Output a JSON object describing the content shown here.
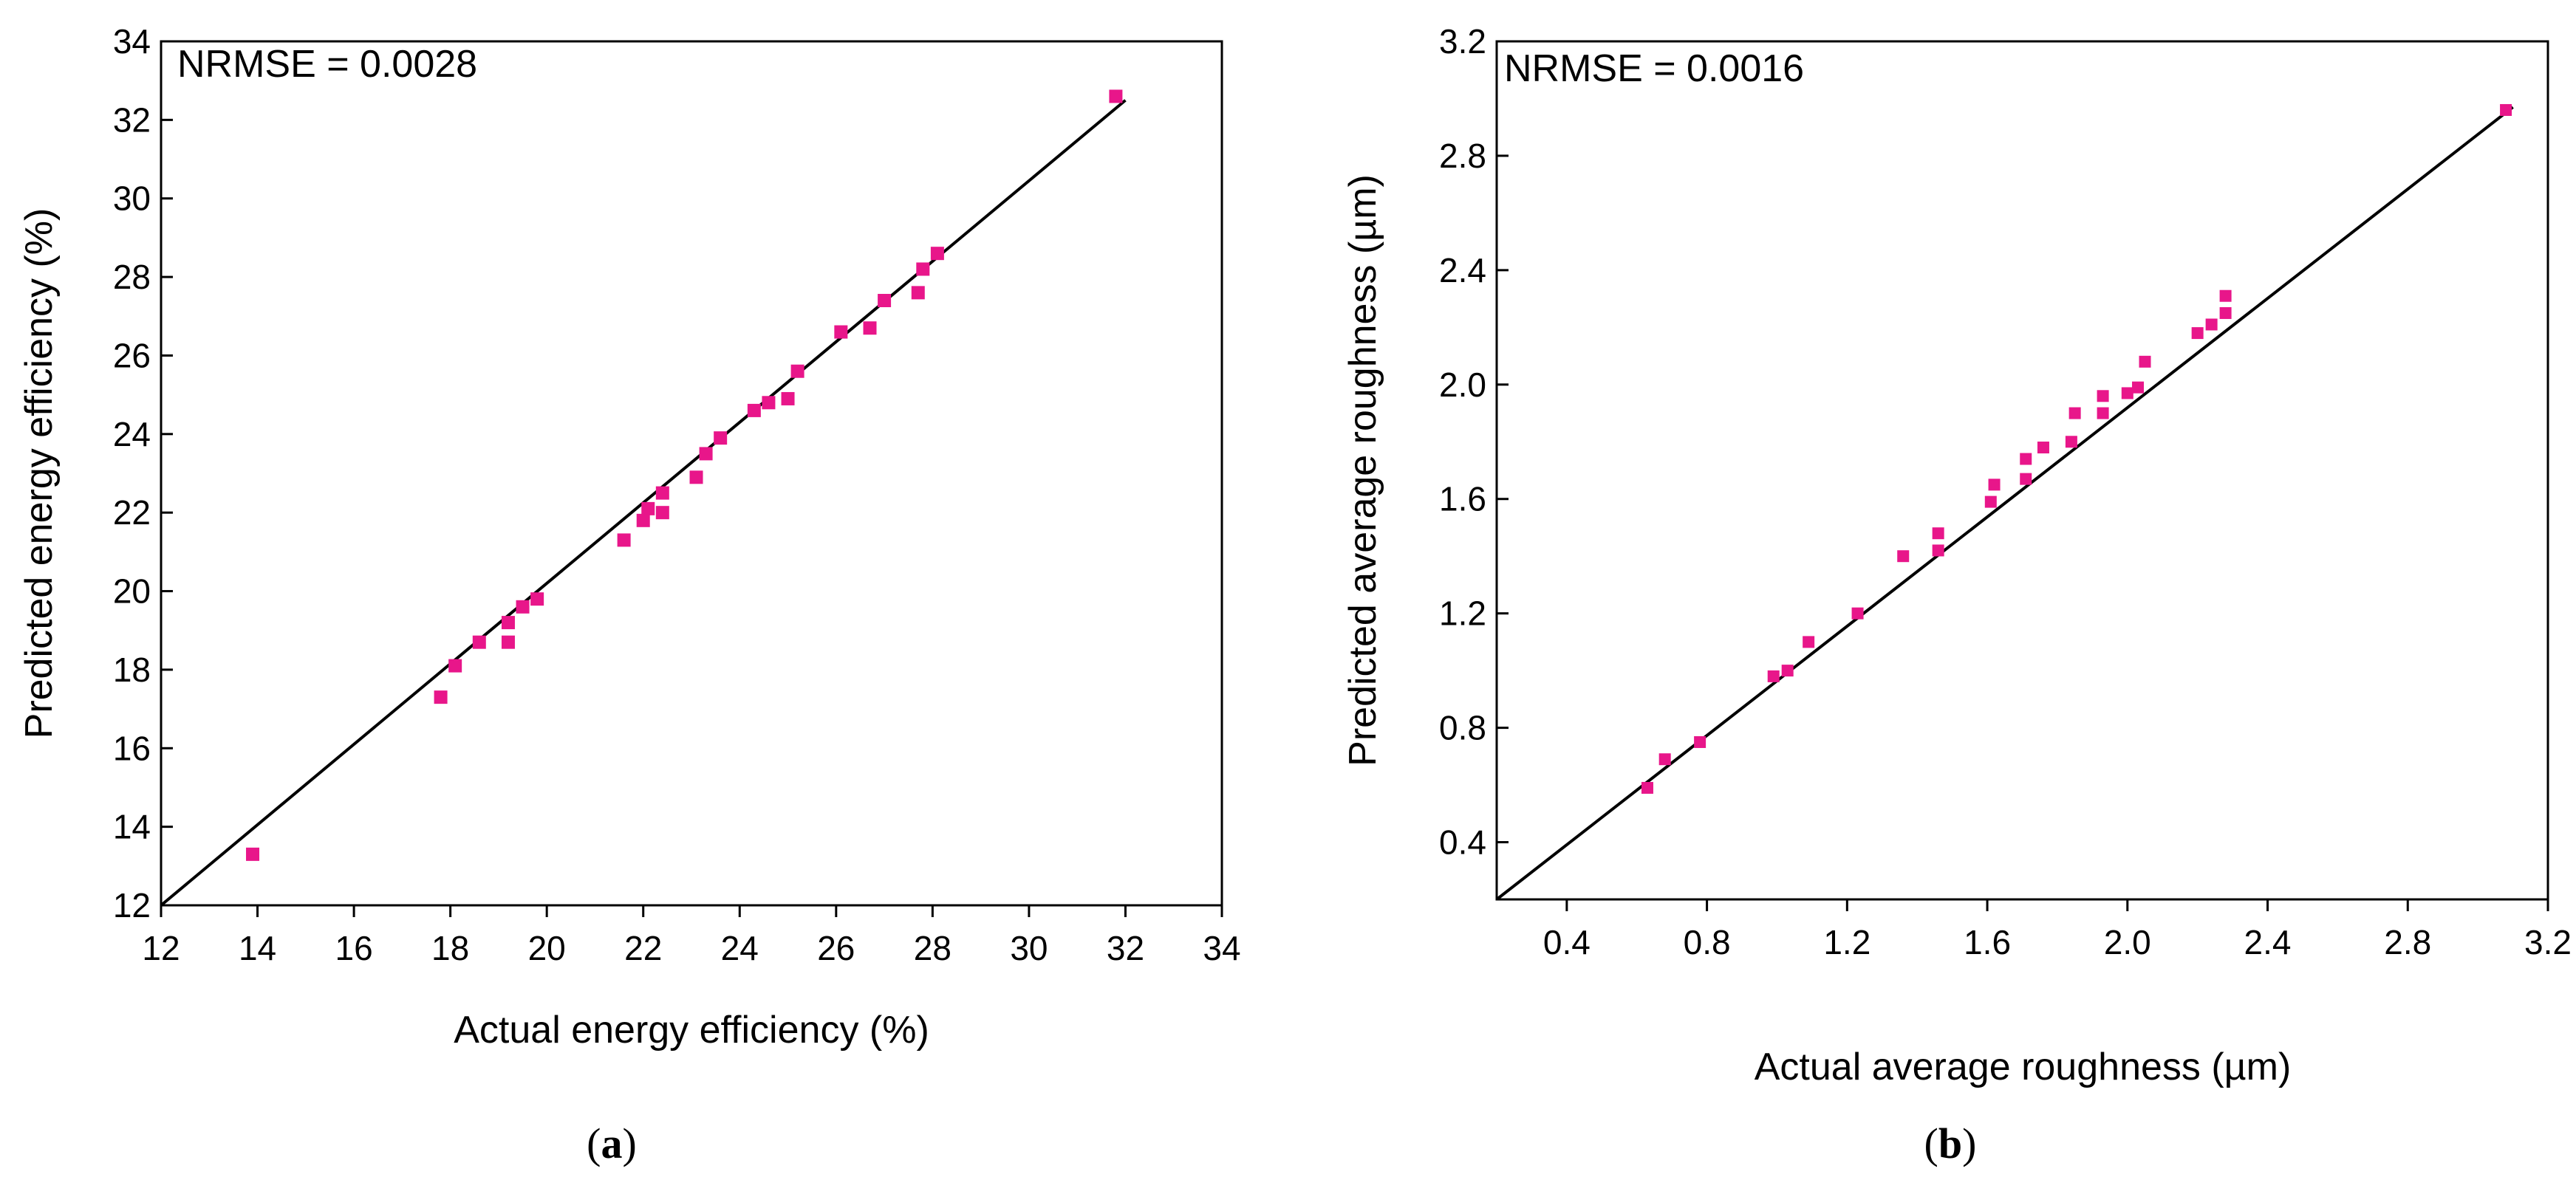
{
  "chart_data": [
    {
      "type": "scatter",
      "panel_label": "a",
      "annotation": "NRMSE = 0.0028",
      "xlabel": "Actual energy efficiency (%)",
      "ylabel": "Predicted energy efficiency (%)",
      "xlim": [
        12,
        34
      ],
      "ylim": [
        12,
        34
      ],
      "xticks": [
        "12",
        "14",
        "16",
        "18",
        "20",
        "22",
        "24",
        "26",
        "28",
        "30",
        "32",
        "34"
      ],
      "yticks": [
        "12",
        "14",
        "16",
        "18",
        "20",
        "22",
        "24",
        "26",
        "28",
        "30",
        "32",
        "34"
      ],
      "reference_line": {
        "x": [
          12,
          32
        ],
        "y": [
          12,
          32.5
        ]
      },
      "marker_color": "#e8168a",
      "line_color": "#000000",
      "points": [
        {
          "x": 13.9,
          "y": 13.3
        },
        {
          "x": 17.8,
          "y": 17.3
        },
        {
          "x": 18.1,
          "y": 18.1
        },
        {
          "x": 18.6,
          "y": 18.7
        },
        {
          "x": 19.2,
          "y": 19.2
        },
        {
          "x": 19.2,
          "y": 18.7
        },
        {
          "x": 19.5,
          "y": 19.6
        },
        {
          "x": 19.8,
          "y": 19.8
        },
        {
          "x": 21.6,
          "y": 21.3
        },
        {
          "x": 22.0,
          "y": 21.8
        },
        {
          "x": 22.1,
          "y": 22.1
        },
        {
          "x": 22.4,
          "y": 22.5
        },
        {
          "x": 22.4,
          "y": 22.0
        },
        {
          "x": 23.1,
          "y": 22.9
        },
        {
          "x": 23.3,
          "y": 23.5
        },
        {
          "x": 23.6,
          "y": 23.9
        },
        {
          "x": 24.3,
          "y": 24.6
        },
        {
          "x": 24.6,
          "y": 24.8
        },
        {
          "x": 25.0,
          "y": 24.9
        },
        {
          "x": 25.2,
          "y": 25.6
        },
        {
          "x": 26.1,
          "y": 26.6
        },
        {
          "x": 26.7,
          "y": 26.7
        },
        {
          "x": 27.0,
          "y": 27.4
        },
        {
          "x": 27.7,
          "y": 27.6
        },
        {
          "x": 27.8,
          "y": 28.2
        },
        {
          "x": 28.1,
          "y": 28.6
        },
        {
          "x": 31.8,
          "y": 32.6
        }
      ]
    },
    {
      "type": "scatter",
      "panel_label": "b",
      "annotation": "NRMSE = 0.0016",
      "xlabel": "Actual average roughness (µm)",
      "ylabel": "Predicted average roughness (µm)",
      "xlim": [
        0.2,
        3.2
      ],
      "ylim": [
        0.2,
        3.2
      ],
      "xticks": [
        "0.4",
        "0.8",
        "1.2",
        "1.6",
        "2.0",
        "2.4",
        "2.8",
        "3.2"
      ],
      "yticks": [
        "0.4",
        "0.8",
        "1.2",
        "1.6",
        "2.0",
        "2.4",
        "2.8",
        "3.2"
      ],
      "reference_line": {
        "x": [
          0.2,
          3.1
        ],
        "y": [
          0.2,
          2.97
        ]
      },
      "marker_color": "#e8168a",
      "line_color": "#000000",
      "points": [
        {
          "x": 0.63,
          "y": 0.59
        },
        {
          "x": 0.68,
          "y": 0.69
        },
        {
          "x": 0.78,
          "y": 0.75
        },
        {
          "x": 0.99,
          "y": 0.98
        },
        {
          "x": 1.03,
          "y": 1.0
        },
        {
          "x": 1.09,
          "y": 1.1
        },
        {
          "x": 1.23,
          "y": 1.2
        },
        {
          "x": 1.36,
          "y": 1.4
        },
        {
          "x": 1.46,
          "y": 1.42
        },
        {
          "x": 1.46,
          "y": 1.48
        },
        {
          "x": 1.61,
          "y": 1.59
        },
        {
          "x": 1.62,
          "y": 1.65
        },
        {
          "x": 1.71,
          "y": 1.67
        },
        {
          "x": 1.71,
          "y": 1.74
        },
        {
          "x": 1.76,
          "y": 1.78
        },
        {
          "x": 1.84,
          "y": 1.8
        },
        {
          "x": 1.85,
          "y": 1.9
        },
        {
          "x": 1.93,
          "y": 1.9
        },
        {
          "x": 1.93,
          "y": 1.96
        },
        {
          "x": 2.0,
          "y": 1.97
        },
        {
          "x": 2.03,
          "y": 1.99
        },
        {
          "x": 2.05,
          "y": 2.08
        },
        {
          "x": 2.2,
          "y": 2.18
        },
        {
          "x": 2.24,
          "y": 2.21
        },
        {
          "x": 2.28,
          "y": 2.25
        },
        {
          "x": 2.28,
          "y": 2.31
        },
        {
          "x": 3.08,
          "y": 2.96
        }
      ]
    }
  ]
}
